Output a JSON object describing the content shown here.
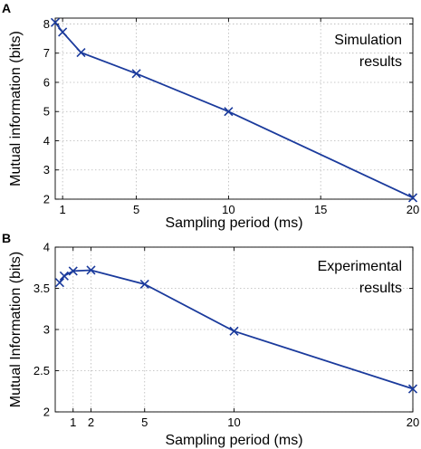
{
  "chart_data": [
    {
      "type": "line",
      "panel_letter": "A",
      "annotation": [
        "Simulation",
        "results"
      ],
      "xlabel": "Sampling period (ms)",
      "ylabel": "Mutual information (bits)",
      "xlim": [
        0.6,
        20
      ],
      "ylim": [
        2,
        8.2
      ],
      "xticks": [
        1,
        5,
        10,
        15,
        20
      ],
      "yticks": [
        2,
        3,
        4,
        5,
        6,
        7,
        8
      ],
      "grid": true,
      "color": "#1a3a9c",
      "series": [
        {
          "x": [
            0.6,
            1,
            2,
            5,
            10,
            20
          ],
          "y": [
            8.05,
            7.72,
            7.02,
            6.3,
            5.0,
            2.05
          ]
        }
      ]
    },
    {
      "type": "line",
      "panel_letter": "B",
      "annotation": [
        "Experimental",
        "results"
      ],
      "xlabel": "Sampling period (ms)",
      "ylabel": "Mutual Information (bits)",
      "xlim": [
        0,
        20
      ],
      "ylim": [
        2,
        4
      ],
      "xticks": [
        1,
        2,
        5,
        10,
        20
      ],
      "yticks": [
        2,
        2.5,
        3,
        3.5,
        4
      ],
      "grid": true,
      "color": "#1a3a9c",
      "series": [
        {
          "x": [
            0.25,
            0.5,
            1,
            2,
            5,
            10,
            20
          ],
          "y": [
            3.57,
            3.65,
            3.71,
            3.72,
            3.55,
            2.98,
            2.28
          ]
        }
      ]
    }
  ]
}
